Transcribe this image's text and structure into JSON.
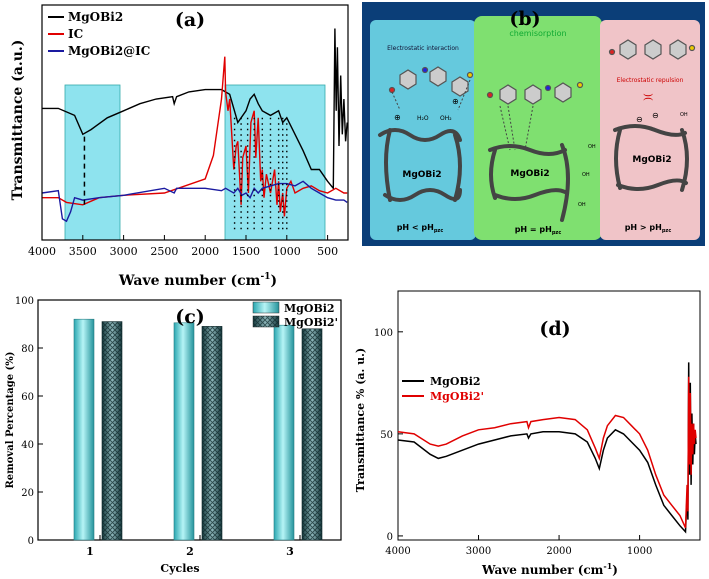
{
  "panel_a": {
    "label": "(a)",
    "ylabel": "Transmittance (a.u.)",
    "xlabel": "Wave number (cm",
    "xlabel_sup": "-1",
    "xlabel_end": ")",
    "xticks": [
      "4000",
      "3500",
      "3000",
      "2500",
      "2000",
      "1500",
      "1000",
      "500"
    ],
    "legend": [
      {
        "name": "MgOBi2",
        "color": "#000000"
      },
      {
        "name": "IC",
        "color": "#e00000"
      },
      {
        "name": "MgOBi2@IC",
        "color": "#1a1aa0"
      }
    ]
  },
  "panel_b": {
    "label": "(b)",
    "sections": [
      {
        "title": "Electrostatic interaction",
        "mat": "MgOBi2",
        "ph": "pH < pH",
        "sub": "pzc",
        "bg": "#6fd8e8"
      },
      {
        "title": "chemisorption",
        "mat": "MgOBi2",
        "ph": "pH = pH",
        "sub": "pzc",
        "bg": "#7fe070"
      },
      {
        "title": "Electrostatic repulsion",
        "mat": "MgOBi2",
        "ph": "pH > pH",
        "sub": "pzc",
        "bg": "#f0c4c8"
      }
    ],
    "atoms": {
      "h2o": "H₂O",
      "oh2": "OH₂",
      "oh": "OH",
      "plus": "⊕",
      "minus": "⊖",
      "wave": ")("
    }
  },
  "panel_c": {
    "label": "(c)",
    "ylabel": "Removal Percentage (%)",
    "xlabel": "Cycles",
    "yticks": [
      "0",
      "20",
      "40",
      "60",
      "80",
      "100"
    ],
    "legend": [
      {
        "name": "MgOBi2"
      },
      {
        "name": "MgOBi2'"
      }
    ]
  },
  "panel_d": {
    "label": "(d)",
    "ylabel": "Transmittance % (a. u.)",
    "xlabel": "Wave number (cm",
    "xlabel_sup": "-1",
    "xlabel_end": ")",
    "xticks": [
      "4000",
      "3000",
      "2000",
      "1000"
    ],
    "yticks": [
      "0",
      "50",
      "100"
    ],
    "legend": [
      {
        "name": "MgOBi2",
        "color": "#000000"
      },
      {
        "name": "MgOBi2'",
        "color": "#e00000"
      }
    ]
  },
  "chart_data": [
    {
      "type": "line",
      "title": "(a)",
      "xlabel": "Wave number (cm-1)",
      "ylabel": "Transmittance (a.u.)",
      "xlim": [
        4000,
        250
      ],
      "ylim": [
        0,
        100
      ],
      "series": [
        {
          "name": "MgOBi2",
          "color": "#000000",
          "x": [
            4000,
            3800,
            3600,
            3500,
            3400,
            3200,
            3000,
            2800,
            2600,
            2400,
            2380,
            2350,
            2200,
            2000,
            1800,
            1700,
            1600,
            1500,
            1450,
            1400,
            1350,
            1300,
            1200,
            1100,
            1050,
            1000,
            900,
            800,
            700,
            600,
            500,
            430,
            410,
            395,
            380,
            360,
            340,
            320,
            300,
            280,
            260
          ],
          "y": [
            56,
            56,
            53,
            45,
            47,
            52,
            55,
            58,
            60,
            61,
            58,
            61,
            63,
            64,
            64,
            62,
            50,
            55,
            60,
            62,
            58,
            55,
            53,
            55,
            50,
            52,
            45,
            38,
            30,
            30,
            25,
            22,
            90,
            55,
            82,
            40,
            70,
            45,
            60,
            42,
            50
          ]
        },
        {
          "name": "IC",
          "color": "#e00000",
          "x": [
            4000,
            3800,
            3700,
            3500,
            3300,
            3000,
            2500,
            2000,
            1900,
            1800,
            1760,
            1750,
            1720,
            1700,
            1650,
            1620,
            1600,
            1560,
            1540,
            1500,
            1470,
            1440,
            1400,
            1380,
            1350,
            1320,
            1300,
            1280,
            1250,
            1200,
            1150,
            1120,
            1100,
            1080,
            1050,
            1030,
            1000,
            950,
            900,
            800,
            700,
            600,
            500,
            400,
            300,
            260
          ],
          "y": [
            18,
            18,
            16,
            15,
            18,
            19,
            20,
            26,
            36,
            60,
            78,
            63,
            55,
            60,
            30,
            40,
            42,
            15,
            35,
            40,
            20,
            50,
            55,
            35,
            52,
            25,
            30,
            18,
            28,
            20,
            30,
            15,
            25,
            12,
            20,
            10,
            22,
            25,
            20,
            22,
            23,
            21,
            20,
            22,
            20,
            20
          ]
        },
        {
          "name": "MgOBi2@IC",
          "color": "#1a1aa0",
          "x": [
            4000,
            3800,
            3750,
            3700,
            3650,
            3600,
            3500,
            3300,
            3000,
            2500,
            2380,
            2350,
            2000,
            1800,
            1750,
            1700,
            1650,
            1600,
            1550,
            1500,
            1450,
            1400,
            1350,
            1300,
            1200,
            1100,
            1000,
            900,
            800,
            700,
            600,
            500,
            400,
            300,
            260
          ],
          "y": [
            20,
            21,
            9,
            8,
            12,
            18,
            17,
            18,
            19,
            22,
            20,
            22,
            22,
            21,
            22,
            21,
            20,
            22,
            19,
            20,
            18,
            22,
            20,
            22,
            23,
            24,
            24,
            23,
            25,
            22,
            20,
            18,
            17,
            17,
            16
          ]
        }
      ]
    },
    {
      "type": "bar",
      "title": "(c)",
      "xlabel": "Cycles",
      "ylabel": "Removal Percentage (%)",
      "categories": [
        "1",
        "2",
        "3"
      ],
      "ylim": [
        0,
        100
      ],
      "series": [
        {
          "name": "MgOBi2",
          "values": [
            92,
            90.5,
            89.5
          ]
        },
        {
          "name": "MgOBi2'",
          "values": [
            91,
            89,
            88
          ]
        }
      ]
    },
    {
      "type": "line",
      "title": "(d)",
      "xlabel": "Wave number (cm-1)",
      "ylabel": "Transmittance % (a. u.)",
      "xlim": [
        4000,
        250
      ],
      "ylim": [
        -2,
        120
      ],
      "series": [
        {
          "name": "MgOBi2",
          "color": "#000000",
          "x": [
            4000,
            3800,
            3600,
            3500,
            3400,
            3200,
            3000,
            2800,
            2600,
            2400,
            2380,
            2350,
            2200,
            2000,
            1800,
            1650,
            1550,
            1500,
            1450,
            1400,
            1300,
            1200,
            1100,
            1000,
            900,
            800,
            700,
            600,
            500,
            430,
            410,
            400,
            390,
            380,
            370,
            360,
            350,
            340,
            330,
            320,
            310,
            300
          ],
          "y": [
            47,
            46,
            40,
            38,
            39,
            42,
            45,
            47,
            49,
            50,
            48,
            50,
            51,
            51,
            50,
            46,
            38,
            33,
            42,
            48,
            52,
            50,
            46,
            42,
            36,
            25,
            15,
            10,
            5,
            2,
            20,
            8,
            85,
            30,
            75,
            25,
            60,
            35,
            55,
            40,
            50,
            45
          ]
        },
        {
          "name": "MgOBi2'",
          "color": "#e00000",
          "x": [
            4000,
            3800,
            3600,
            3500,
            3400,
            3200,
            3000,
            2800,
            2600,
            2400,
            2380,
            2350,
            2200,
            2000,
            1800,
            1650,
            1550,
            1500,
            1450,
            1400,
            1300,
            1200,
            1100,
            1000,
            900,
            800,
            700,
            600,
            500,
            430,
            410,
            400,
            390,
            380,
            370,
            360,
            350,
            340,
            330,
            320,
            310,
            300
          ],
          "y": [
            51,
            50,
            45,
            44,
            45,
            49,
            52,
            53,
            55,
            56,
            53,
            56,
            57,
            58,
            57,
            52,
            43,
            38,
            48,
            54,
            59,
            58,
            54,
            50,
            42,
            30,
            20,
            15,
            10,
            4,
            25,
            12,
            78,
            35,
            70,
            30,
            55,
            40,
            55,
            45,
            52,
            48
          ]
        }
      ]
    }
  ]
}
